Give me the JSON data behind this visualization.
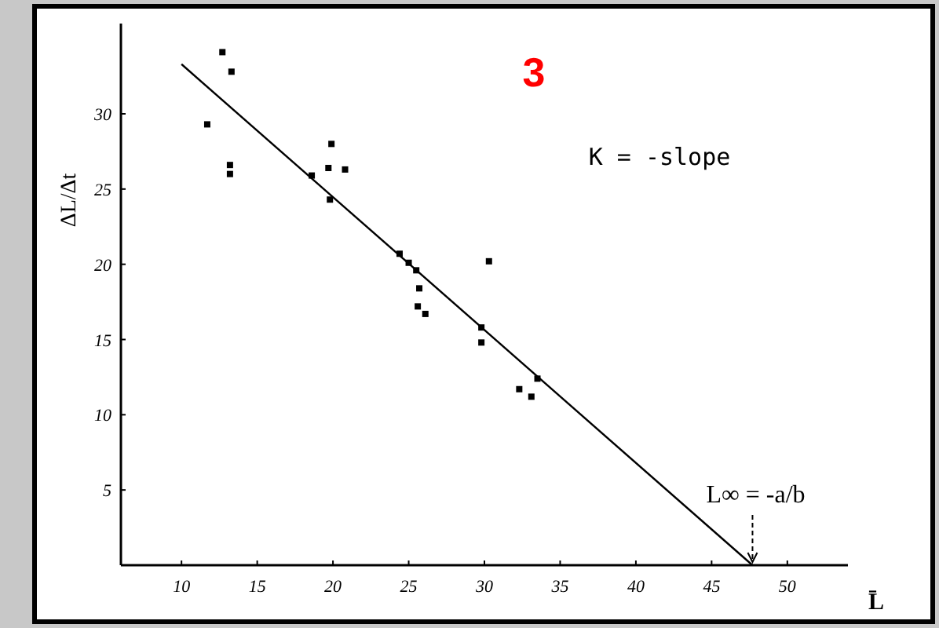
{
  "chart_data": {
    "type": "scatter",
    "title": "3",
    "xlabel": "L̄",
    "ylabel": "ΔL/Δt",
    "xlim": [
      6,
      54
    ],
    "ylim": [
      0,
      36
    ],
    "xticks": [
      10,
      15,
      20,
      25,
      30,
      35,
      40,
      45,
      50
    ],
    "yticks": [
      5,
      10,
      15,
      20,
      25,
      30
    ],
    "grid": false,
    "series": [
      {
        "marker": "square",
        "color": "#000000",
        "x": [
          12.7,
          13.3,
          11.7,
          13.2,
          13.2,
          18.6,
          19.9,
          19.7,
          20.8,
          19.8,
          24.4,
          25.0,
          25.5,
          25.7,
          25.6,
          26.1,
          30.3,
          29.8,
          29.8,
          32.3,
          33.1,
          33.5
        ],
        "values": [
          34.1,
          32.8,
          29.3,
          26.0,
          26.6,
          25.9,
          28.0,
          26.4,
          26.3,
          24.3,
          20.7,
          20.1,
          19.6,
          18.4,
          17.2,
          16.7,
          20.2,
          14.8,
          15.8,
          11.7,
          11.2,
          12.4
        ]
      },
      {
        "type": "line",
        "color": "#000000",
        "x": [
          10,
          47.7
        ],
        "values": [
          33.3,
          0
        ]
      }
    ],
    "annotations": [
      "K = -slope",
      {
        "text": "L∞ = -a/b",
        "x": 47.7,
        "y": 0
      }
    ]
  }
}
